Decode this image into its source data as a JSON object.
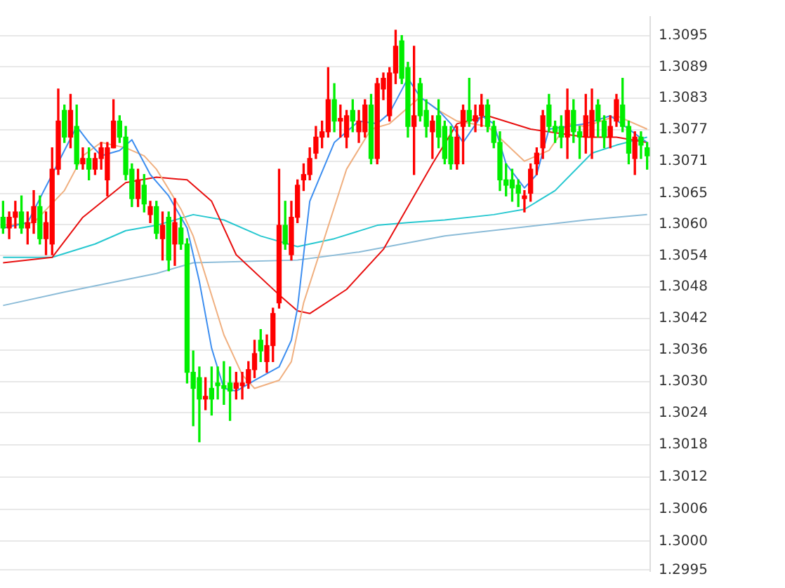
{
  "chart_data": {
    "type": "candlestick",
    "categories": [
      null,
      null,
      null,
      null,
      null,
      null,
      null,
      null,
      null,
      null,
      null,
      null,
      null,
      null,
      null,
      null,
      null,
      null,
      null,
      null,
      null,
      null,
      null,
      null,
      null,
      null,
      null,
      null,
      null,
      null,
      null,
      null,
      null,
      null,
      null,
      null,
      null,
      null,
      null,
      null,
      null,
      null,
      null,
      null,
      null,
      null,
      null,
      null,
      null,
      null,
      null,
      null,
      null,
      null,
      null,
      null,
      null,
      null,
      null,
      null,
      null,
      null,
      null,
      null,
      null,
      null,
      null,
      null,
      null,
      null,
      null,
      null,
      null,
      null,
      null,
      null,
      null,
      null,
      null,
      null,
      null,
      null,
      null,
      null,
      null,
      null,
      null,
      null,
      null,
      null,
      null,
      null,
      null,
      null,
      null,
      null,
      null,
      null,
      null,
      null,
      null,
      null,
      null,
      null,
      null,
      null
    ],
    "ohlc": [
      [
        1.3061,
        1.3064,
        1.3058,
        1.3059
      ],
      [
        1.3059,
        1.3062,
        1.3057,
        1.3061
      ],
      [
        1.3061,
        1.3064,
        1.3059,
        1.3062
      ],
      [
        1.3062,
        1.3065,
        1.3058,
        1.3059
      ],
      [
        1.3059,
        1.3062,
        1.3056,
        1.306
      ],
      [
        1.306,
        1.3066,
        1.3058,
        1.3063
      ],
      [
        1.3063,
        1.3065,
        1.3056,
        1.3057
      ],
      [
        1.3057,
        1.3062,
        1.3054,
        1.306
      ],
      [
        1.3056,
        1.3074,
        1.3054,
        1.307
      ],
      [
        1.307,
        1.3085,
        1.3069,
        1.3079
      ],
      [
        1.3081,
        1.3082,
        1.3075,
        1.3076
      ],
      [
        1.3076,
        1.3084,
        1.3074,
        1.3081
      ],
      [
        1.3078,
        1.3082,
        1.307,
        1.3071
      ],
      [
        1.3071,
        1.3074,
        1.307,
        1.3072
      ],
      [
        1.3072,
        1.3074,
        1.3068,
        1.307
      ],
      [
        1.307,
        1.3073,
        1.3069,
        1.3072
      ],
      [
        1.3072,
        1.3075,
        1.307,
        1.3074
      ],
      [
        1.3068,
        1.3075,
        1.3065,
        1.3074
      ],
      [
        1.3074,
        1.3083,
        1.3074,
        1.3079
      ],
      [
        1.3079,
        1.308,
        1.3075,
        1.3076
      ],
      [
        1.3076,
        1.3078,
        1.3068,
        1.3069
      ],
      [
        1.307,
        1.3071,
        1.3063,
        1.30645
      ],
      [
        1.30645,
        1.307,
        1.3063,
        1.3068
      ],
      [
        1.3067,
        1.3069,
        1.3062,
        1.30635
      ],
      [
        1.30615,
        1.3064,
        1.306,
        1.3063
      ],
      [
        1.3063,
        1.3064,
        1.3057,
        1.3058
      ],
      [
        1.3057,
        1.3062,
        1.3053,
        1.30595
      ],
      [
        1.3061,
        1.3062,
        1.3051,
        1.3053
      ],
      [
        1.3056,
        1.30645,
        1.3052,
        1.306
      ],
      [
        1.3059,
        1.3061,
        1.3055,
        1.3056
      ],
      [
        1.3056,
        1.3057,
        1.303,
        1.3032
      ],
      [
        1.3032,
        1.3036,
        1.3022,
        1.3029
      ],
      [
        1.3031,
        1.3033,
        1.3019,
        1.3027
      ],
      [
        1.3027,
        1.3031,
        1.3025,
        1.30275
      ],
      [
        1.3029,
        1.3033,
        1.3024,
        1.3027
      ],
      [
        1.303,
        1.3033,
        1.3027,
        1.30295
      ],
      [
        1.30295,
        1.3034,
        1.3026,
        1.3029
      ],
      [
        1.303,
        1.3033,
        1.3023,
        1.30285
      ],
      [
        1.3029,
        1.3032,
        1.3027,
        1.303
      ],
      [
        1.30295,
        1.3032,
        1.3027,
        1.303
      ],
      [
        1.303,
        1.3034,
        1.3029,
        1.30325
      ],
      [
        1.30325,
        1.3038,
        1.3031,
        1.30355
      ],
      [
        1.3038,
        1.304,
        1.3034,
        1.3036
      ],
      [
        1.3034,
        1.3039,
        1.3032,
        1.3037
      ],
      [
        1.3037,
        1.3044,
        1.3034,
        1.3043
      ],
      [
        1.3045,
        1.307,
        1.3044,
        1.30595
      ],
      [
        1.30595,
        1.3064,
        1.3055,
        1.3056
      ],
      [
        1.3054,
        1.3064,
        1.3053,
        1.3061
      ],
      [
        1.3061,
        1.3068,
        1.306,
        1.3067
      ],
      [
        1.3068,
        1.3071,
        1.3066,
        1.3069
      ],
      [
        1.3069,
        1.3074,
        1.3068,
        1.3072
      ],
      [
        1.3073,
        1.3078,
        1.3072,
        1.3076
      ],
      [
        1.3076,
        1.3079,
        1.3074,
        1.3077
      ],
      [
        1.3077,
        1.3089,
        1.3076,
        1.3083
      ],
      [
        1.3083,
        1.3086,
        1.3077,
        1.3079
      ],
      [
        1.3079,
        1.3082,
        1.3076,
        1.30795
      ],
      [
        1.3076,
        1.3081,
        1.3074,
        1.308
      ],
      [
        1.3081,
        1.3083,
        1.3077,
        1.3079
      ],
      [
        1.3077,
        1.3081,
        1.3075,
        1.3079
      ],
      [
        1.3077,
        1.3083,
        1.3076,
        1.3082
      ],
      [
        1.3082,
        1.3084,
        1.3071,
        1.3072
      ],
      [
        1.3072,
        1.3087,
        1.3071,
        1.3086
      ],
      [
        1.3085,
        1.3088,
        1.3083,
        1.3087
      ],
      [
        1.308,
        1.3089,
        1.3079,
        1.3088
      ],
      [
        1.3088,
        1.3096,
        1.3086,
        1.3093
      ],
      [
        1.3094,
        1.3095,
        1.3086,
        1.3087
      ],
      [
        1.3089,
        1.309,
        1.3076,
        1.3078
      ],
      [
        1.3078,
        1.3093,
        1.3069,
        1.308
      ],
      [
        1.3086,
        1.3087,
        1.3079,
        1.308
      ],
      [
        1.3081,
        1.3083,
        1.3076,
        1.3078
      ],
      [
        1.3077,
        1.308,
        1.3072,
        1.3079
      ],
      [
        1.308,
        1.3083,
        1.3074,
        1.3076
      ],
      [
        1.3078,
        1.3079,
        1.3071,
        1.3072
      ],
      [
        1.3076,
        1.3078,
        1.307,
        1.3071
      ],
      [
        1.3071,
        1.3078,
        1.307,
        1.3076
      ],
      [
        1.3078,
        1.3082,
        1.3071,
        1.3081
      ],
      [
        1.3081,
        1.3087,
        1.3078,
        1.3079
      ],
      [
        1.3079,
        1.3082,
        1.3077,
        1.308
      ],
      [
        1.308,
        1.3084,
        1.3078,
        1.3082
      ],
      [
        1.3082,
        1.3083,
        1.3077,
        1.3078
      ],
      [
        1.3078,
        1.3079,
        1.3074,
        1.3075
      ],
      [
        1.3075,
        1.3077,
        1.3066,
        1.3068
      ],
      [
        1.3068,
        1.3071,
        1.3065,
        1.3067
      ],
      [
        1.3068,
        1.307,
        1.3064,
        1.30665
      ],
      [
        1.3067,
        1.3068,
        1.3063,
        1.30655
      ],
      [
        1.30645,
        1.3066,
        1.3062,
        1.3065
      ],
      [
        1.30655,
        1.3071,
        1.3064,
        1.307
      ],
      [
        1.3071,
        1.3074,
        1.3069,
        1.3073
      ],
      [
        1.3074,
        1.3081,
        1.3072,
        1.308
      ],
      [
        1.3082,
        1.3084,
        1.3077,
        1.3078
      ],
      [
        1.3078,
        1.3079,
        1.3075,
        1.3077
      ],
      [
        1.3078,
        1.308,
        1.3074,
        1.3076
      ],
      [
        1.3076,
        1.3085,
        1.3072,
        1.3081
      ],
      [
        1.3081,
        1.3083,
        1.3075,
        1.3077
      ],
      [
        1.3077,
        1.3078,
        1.3072,
        1.3076
      ],
      [
        1.3076,
        1.3084,
        1.3073,
        1.308
      ],
      [
        1.3076,
        1.3085,
        1.3072,
        1.3081
      ],
      [
        1.3082,
        1.3083,
        1.3076,
        1.3079
      ],
      [
        1.3079,
        1.308,
        1.3074,
        1.3076
      ],
      [
        1.3076,
        1.308,
        1.3074,
        1.3078
      ],
      [
        1.3079,
        1.3084,
        1.3078,
        1.3083
      ],
      [
        1.3082,
        1.3087,
        1.3077,
        1.3078
      ],
      [
        1.3078,
        1.3079,
        1.3071,
        1.3073
      ],
      [
        1.3072,
        1.3077,
        1.3069,
        1.3076
      ],
      [
        1.3076,
        1.3077,
        1.3072,
        1.30745
      ],
      [
        1.3074,
        1.3075,
        1.307,
        1.30725
      ]
    ],
    "colors": [
      "#00ee00",
      "#ff0000",
      "#ff0000",
      "#00ee00",
      "#ff0000",
      "#ff0000",
      "#00ee00",
      "#ff0000",
      "#ff0000",
      "#ff0000",
      "#00ee00",
      "#ff0000",
      "#00ee00",
      "#ff0000",
      "#00ee00",
      "#ff0000",
      "#ff0000",
      "#ff0000",
      "#ff0000",
      "#00ee00",
      "#00ee00",
      "#00ee00",
      "#ff0000",
      "#00ee00",
      "#ff0000",
      "#00ee00",
      "#ff0000",
      "#00ee00",
      "#ff0000",
      "#00ee00",
      "#00ee00",
      "#00ee00",
      "#00ee00",
      "#ff0000",
      "#00ee00",
      "#00ee00",
      "#00ee00",
      "#00ee00",
      "#ff0000",
      "#ff0000",
      "#ff0000",
      "#ff0000",
      "#00ee00",
      "#ff0000",
      "#ff0000",
      "#ff0000",
      "#00ee00",
      "#ff0000",
      "#ff0000",
      "#ff0000",
      "#ff0000",
      "#ff0000",
      "#ff0000",
      "#ff0000",
      "#00ee00",
      "#ff0000",
      "#ff0000",
      "#00ee00",
      "#ff0000",
      "#ff0000",
      "#00ee00",
      "#ff0000",
      "#ff0000",
      "#ff0000",
      "#ff0000",
      "#00ee00",
      "#00ee00",
      "#ff0000",
      "#00ee00",
      "#00ee00",
      "#ff0000",
      "#00ee00",
      "#00ee00",
      "#00ee00",
      "#ff0000",
      "#ff0000",
      "#00ee00",
      "#ff0000",
      "#ff0000",
      "#00ee00",
      "#00ee00",
      "#00ee00",
      "#00ee00",
      "#00ee00",
      "#00ee00",
      "#ff0000",
      "#ff0000",
      "#ff0000",
      "#ff0000",
      "#00ee00",
      "#00ee00",
      "#00ee00",
      "#ff0000",
      "#00ee00",
      "#00ee00",
      "#ff0000",
      "#ff0000",
      "#00ee00",
      "#00ee00",
      "#ff0000",
      "#ff0000",
      "#00ee00",
      "#00ee00",
      "#ff0000",
      "#00ee00",
      "#00ee00"
    ],
    "series": [
      {
        "type": "line",
        "color": "#3d8ef0",
        "values": [
          1.3059,
          null,
          null,
          null,
          1.306,
          null,
          null,
          null,
          null,
          null,
          1.30735,
          null,
          1.3078,
          null,
          1.3075,
          null,
          1.30725,
          null,
          null,
          1.30735,
          null,
          1.30755,
          null,
          null,
          1.3069,
          null,
          null,
          1.3065,
          null,
          null,
          1.3059,
          null,
          1.3049,
          null,
          1.30365,
          null,
          1.3029,
          null,
          1.30285,
          null,
          null,
          1.30305,
          null,
          null,
          null,
          1.3033,
          null,
          1.3038,
          1.3044,
          null,
          1.3064,
          null,
          null,
          null,
          1.3075,
          null,
          null,
          null,
          1.3079,
          null,
          null,
          1.30785,
          null,
          1.30805,
          null,
          null,
          1.3087,
          null,
          1.30835,
          null,
          null,
          1.3081,
          null,
          1.30785,
          null,
          1.3075,
          null,
          null,
          1.308,
          null,
          1.30785,
          null,
          1.3071,
          null,
          null,
          1.30665,
          null,
          1.3069,
          null,
          1.30775,
          null,
          null,
          1.3078,
          null,
          null,
          1.30785,
          null,
          null,
          null,
          1.308,
          null,
          null,
          1.30775,
          null,
          null,
          1.3075
        ]
      },
      {
        "type": "line",
        "color": "#f0b080",
        "values": [
          1.30595,
          null,
          null,
          null,
          null,
          1.306,
          null,
          null,
          null,
          null,
          1.3066,
          null,
          null,
          1.30725,
          null,
          null,
          1.3075,
          null,
          null,
          null,
          1.3074,
          null,
          null,
          1.30725,
          null,
          1.307,
          null,
          null,
          null,
          1.30625,
          null,
          1.30575,
          null,
          null,
          null,
          null,
          1.3039,
          null,
          null,
          1.30315,
          null,
          1.3029,
          null,
          null,
          null,
          1.30305,
          null,
          1.3034,
          null,
          1.3045,
          null,
          null,
          null,
          null,
          null,
          null,
          1.307,
          null,
          null,
          null,
          1.30775,
          null,
          null,
          1.30785,
          null,
          null,
          null,
          null,
          1.30835,
          null,
          null,
          1.3081,
          null,
          null,
          1.3079,
          null,
          null,
          null,
          null,
          1.3078,
          null,
          null,
          null,
          null,
          null,
          1.30715,
          null,
          null,
          null,
          1.30735,
          null,
          null,
          1.30785,
          null,
          null,
          1.3078,
          null,
          null,
          null,
          null,
          1.308,
          null,
          null,
          null,
          null,
          1.30775
        ]
      },
      {
        "type": "line",
        "color": "#e81010",
        "values": [
          1.30525,
          null,
          null,
          null,
          null,
          null,
          null,
          null,
          1.30535,
          null,
          null,
          null,
          null,
          1.3061,
          null,
          null,
          null,
          null,
          null,
          null,
          1.30675,
          null,
          null,
          null,
          null,
          1.30685,
          null,
          null,
          null,
          null,
          1.3068,
          null,
          null,
          null,
          1.3064,
          null,
          null,
          null,
          1.3054,
          null,
          null,
          null,
          null,
          null,
          null,
          1.30465,
          null,
          null,
          1.30435,
          null,
          1.3043,
          null,
          null,
          null,
          null,
          null,
          1.30475,
          null,
          null,
          null,
          null,
          null,
          1.3055,
          null,
          null,
          null,
          null,
          null,
          null,
          null,
          1.3071,
          null,
          null,
          null,
          1.30785,
          null,
          null,
          null,
          null,
          1.308,
          null,
          null,
          null,
          null,
          null,
          null,
          1.30775,
          null,
          null,
          null,
          null,
          null,
          null,
          null,
          null,
          1.3076,
          null,
          null,
          null,
          null,
          1.3076,
          null,
          null,
          null,
          null,
          1.3075
        ]
      },
      {
        "type": "line",
        "color": "#28c8d0",
        "values": [
          1.30535,
          null,
          null,
          null,
          null,
          null,
          null,
          null,
          1.30535,
          null,
          null,
          null,
          null,
          null,
          null,
          1.3056,
          null,
          null,
          null,
          null,
          1.30585,
          null,
          null,
          null,
          null,
          1.30595,
          null,
          null,
          null,
          null,
          null,
          1.30615,
          null,
          null,
          null,
          null,
          1.30605,
          null,
          null,
          null,
          null,
          null,
          1.30575,
          null,
          null,
          null,
          null,
          null,
          1.30555,
          null,
          null,
          null,
          null,
          null,
          1.3057,
          null,
          null,
          null,
          null,
          null,
          null,
          1.30595,
          null,
          null,
          null,
          null,
          1.306,
          null,
          null,
          null,
          null,
          null,
          1.30605,
          null,
          null,
          null,
          null,
          null,
          null,
          null,
          1.30615,
          null,
          null,
          null,
          null,
          1.30625,
          null,
          null,
          null,
          null,
          1.3066,
          null,
          null,
          null,
          null,
          null,
          1.3073,
          null,
          null,
          null,
          1.30745,
          null,
          null,
          null,
          null,
          1.3076
        ]
      },
      {
        "type": "line",
        "color": "#8cbcd8",
        "values": [
          1.30445,
          null,
          null,
          null,
          null,
          null,
          null,
          null,
          null,
          null,
          1.3047,
          null,
          null,
          null,
          null,
          null,
          null,
          null,
          null,
          null,
          null,
          null,
          null,
          null,
          null,
          1.30505,
          null,
          null,
          null,
          null,
          null,
          1.30525,
          null,
          null,
          null,
          null,
          null,
          null,
          null,
          null,
          null,
          null,
          null,
          null,
          null,
          null,
          null,
          null,
          1.3053,
          null,
          null,
          null,
          null,
          null,
          null,
          null,
          null,
          null,
          1.30545,
          null,
          null,
          null,
          null,
          null,
          null,
          null,
          null,
          null,
          null,
          null,
          null,
          null,
          1.30575,
          null,
          null,
          null,
          null,
          null,
          null,
          null,
          null,
          null,
          null,
          null,
          null,
          null,
          null,
          null,
          null,
          null,
          null,
          null,
          null,
          null,
          null,
          1.30605,
          null,
          null,
          null,
          null,
          null,
          null,
          null,
          null,
          null,
          1.30615
        ]
      }
    ],
    "ylim": [
      1.29948,
      1.30985
    ],
    "yticks": [
      {
        "value": 1.3095,
        "label": "1.3095"
      },
      {
        "value": 1.308912,
        "label": "1.3089"
      },
      {
        "value": 1.308324,
        "label": "1.3083"
      },
      {
        "value": 1.307735,
        "label": "1.3077"
      },
      {
        "value": 1.307147,
        "label": "1.3071"
      },
      {
        "value": 1.30654,
        "label": "1.3065"
      },
      {
        "value": 1.305971,
        "label": "1.3060"
      },
      {
        "value": 1.305382,
        "label": "1.3054"
      },
      {
        "value": 1.304794,
        "label": "1.3048"
      },
      {
        "value": 1.304206,
        "label": "1.3042"
      },
      {
        "value": 1.303618,
        "label": "1.3036"
      },
      {
        "value": 1.303029,
        "label": "1.3030"
      },
      {
        "value": 1.302441,
        "label": "1.3024"
      },
      {
        "value": 1.30184,
        "label": "1.3018"
      },
      {
        "value": 1.30124,
        "label": "1.3012"
      },
      {
        "value": 1.30064,
        "label": "1.3006"
      },
      {
        "value": 1.30004,
        "label": "1.3000"
      },
      {
        "value": 1.2995,
        "label": "1.2995"
      }
    ],
    "grid": "y",
    "tick_labels": "y"
  }
}
